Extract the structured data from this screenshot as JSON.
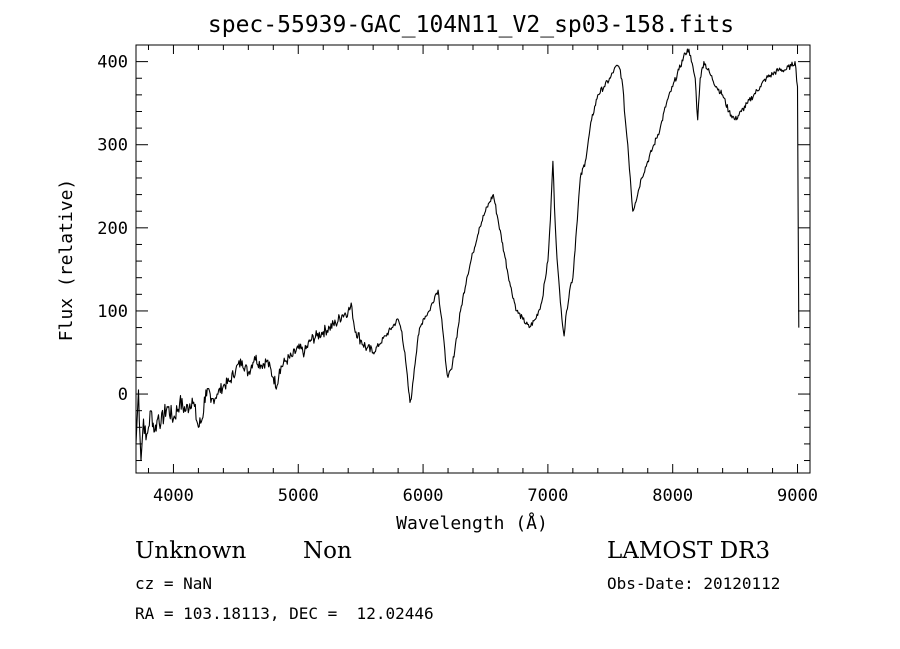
{
  "chart_data": {
    "type": "line",
    "title": "spec-55939-GAC_104N11_V2_sp03-158.fits",
    "xlabel": "Wavelength (Å)",
    "ylabel": "Flux (relative)",
    "xlim": [
      3700,
      9100
    ],
    "ylim": [
      -95,
      420
    ],
    "xticks": [
      4000,
      5000,
      6000,
      7000,
      8000,
      9000
    ],
    "yticks": [
      0,
      100,
      200,
      300,
      400
    ],
    "grid": false,
    "series": [
      {
        "x": [
          3700,
          3720,
          3740,
          3760,
          3780,
          3800,
          3820,
          3850,
          3880,
          3900,
          3950,
          4000,
          4050,
          4100,
          4150,
          4200,
          4230,
          4260,
          4300,
          4350,
          4400,
          4450,
          4500,
          4550,
          4600,
          4650,
          4700,
          4750,
          4800,
          4830,
          4850,
          4900,
          4950,
          5000,
          5050,
          5100,
          5150,
          5200,
          5250,
          5300,
          5350,
          5400,
          5430,
          5450,
          5500,
          5550,
          5600,
          5650,
          5700,
          5750,
          5800,
          5830,
          5860,
          5880,
          5895,
          5910,
          5930,
          5960,
          6000,
          6050,
          6100,
          6120,
          6150,
          6180,
          6200,
          6230,
          6260,
          6300,
          6350,
          6400,
          6450,
          6500,
          6530,
          6563,
          6600,
          6650,
          6700,
          6750,
          6800,
          6850,
          6900,
          6950,
          7000,
          7020,
          7040,
          7060,
          7080,
          7100,
          7130,
          7150,
          7180,
          7200,
          7230,
          7260,
          7300,
          7350,
          7400,
          7450,
          7500,
          7530,
          7560,
          7580,
          7600,
          7620,
          7640,
          7660,
          7680,
          7700,
          7750,
          7800,
          7850,
          7900,
          7950,
          8000,
          8050,
          8100,
          8130,
          8150,
          8180,
          8200,
          8220,
          8250,
          8300,
          8350,
          8400,
          8450,
          8500,
          8550,
          8600,
          8650,
          8700,
          8750,
          8800,
          8850,
          8900,
          8950,
          8980,
          9000,
          9010
        ],
        "y": [
          -60,
          5,
          -80,
          -30,
          -55,
          -40,
          -20,
          -45,
          -25,
          -35,
          -15,
          -30,
          -10,
          -20,
          -5,
          -40,
          -30,
          5,
          -10,
          0,
          10,
          15,
          30,
          40,
          25,
          45,
          35,
          40,
          20,
          10,
          30,
          40,
          45,
          55,
          50,
          65,
          70,
          75,
          80,
          85,
          95,
          100,
          105,
          80,
          65,
          55,
          50,
          60,
          70,
          80,
          90,
          75,
          40,
          10,
          -10,
          0,
          30,
          70,
          90,
          100,
          120,
          125,
          90,
          40,
          20,
          30,
          60,
          100,
          140,
          170,
          200,
          220,
          230,
          240,
          210,
          170,
          130,
          100,
          90,
          80,
          90,
          110,
          160,
          210,
          280,
          200,
          150,
          110,
          70,
          100,
          130,
          140,
          200,
          260,
          280,
          330,
          360,
          370,
          380,
          390,
          395,
          390,
          370,
          330,
          300,
          260,
          220,
          230,
          260,
          280,
          300,
          320,
          350,
          370,
          390,
          410,
          415,
          400,
          380,
          330,
          380,
          400,
          385,
          370,
          360,
          340,
          330,
          340,
          350,
          360,
          370,
          380,
          385,
          390,
          390,
          395,
          400,
          370,
          80
        ]
      }
    ]
  },
  "info": {
    "obj_class": "Unknown",
    "obj_subclass": "Non",
    "survey": "LAMOST DR3",
    "redshift": "cz = NaN",
    "obs_date": "Obs-Date: 20120112",
    "coords": "RA = 103.18113, DEC =  12.02446"
  }
}
